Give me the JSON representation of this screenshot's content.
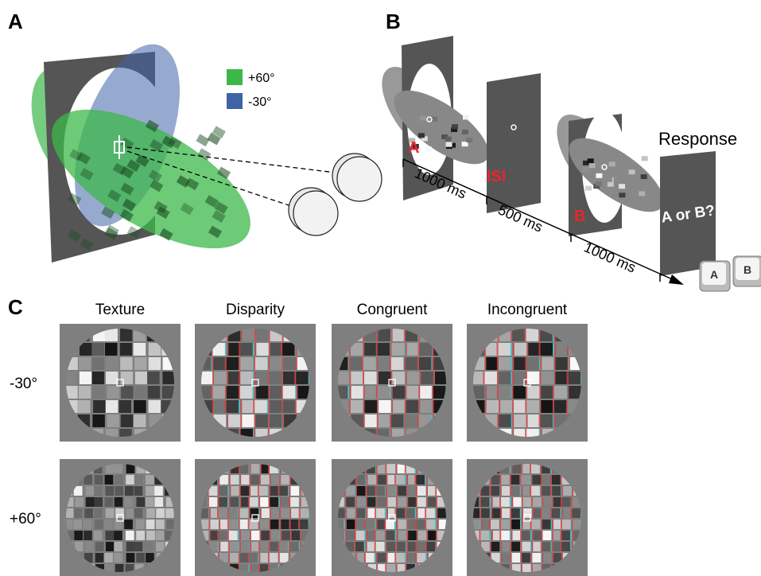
{
  "panels": {
    "a": {
      "label": "A",
      "legend": [
        {
          "label": "+60°",
          "color": "#3cb84a"
        },
        {
          "label": "-30°",
          "color": "#4063a6"
        }
      ]
    },
    "b": {
      "label": "B",
      "frames": [
        "A",
        "ISI",
        "B"
      ],
      "durations": [
        "1000 ms",
        "500 ms",
        "1000 ms"
      ],
      "response_title": "Response",
      "response_text": "A or B?",
      "keys": [
        "A",
        "B"
      ]
    },
    "c": {
      "label": "C",
      "columns": [
        "Texture",
        "Disparity",
        "Congruent",
        "Incongruent"
      ],
      "rows": [
        "-30°",
        "+60°"
      ]
    }
  }
}
